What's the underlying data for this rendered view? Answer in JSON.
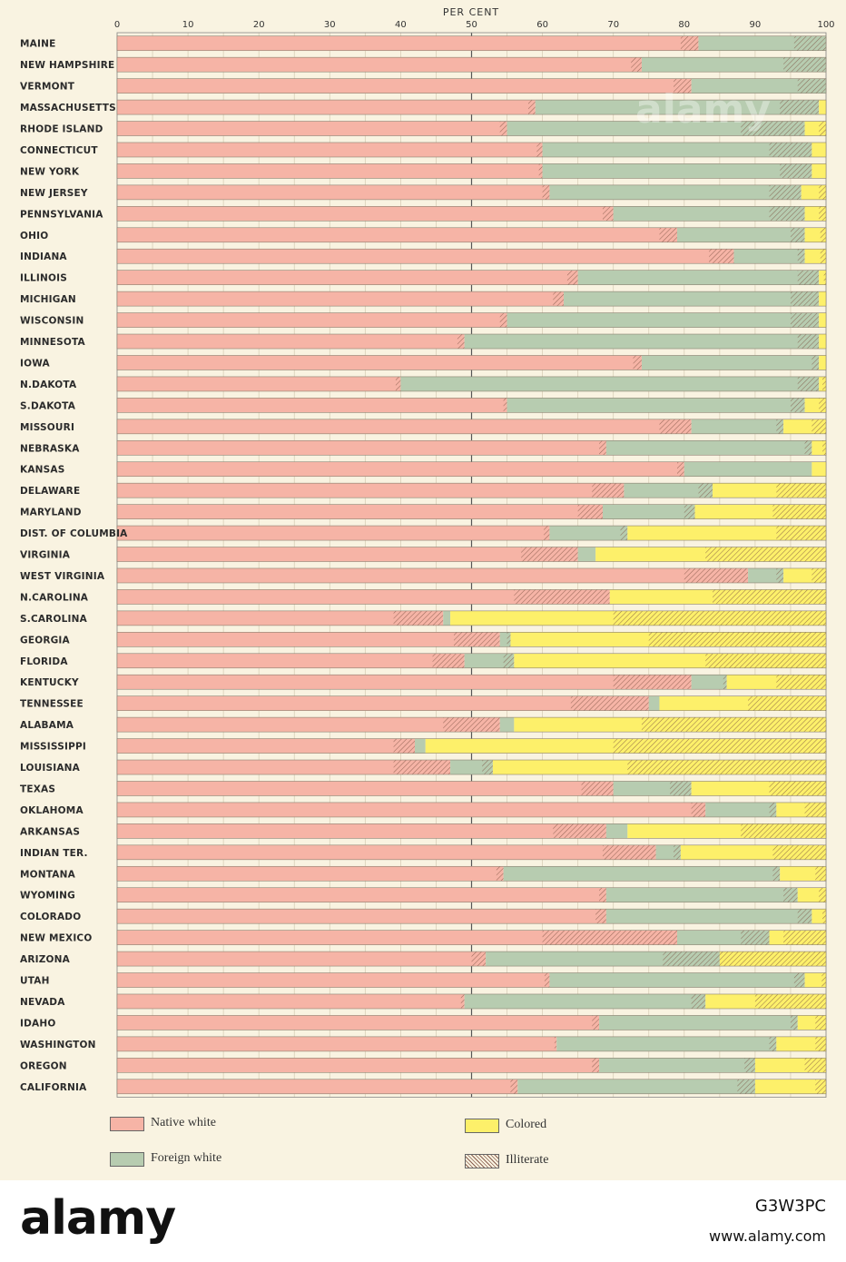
{
  "chart_data": {
    "type": "bar",
    "orientation": "horizontal",
    "stacked": true,
    "title": "",
    "xlabel": "PER CENT",
    "xlim": [
      0,
      100
    ],
    "x_ticks": [
      "0",
      "10",
      "20",
      "30",
      "40",
      "50",
      "60",
      "70",
      "80",
      "90",
      "100"
    ],
    "grid": true,
    "legend": [
      {
        "key": "native",
        "label": "Native white",
        "color": "#f6b4a6"
      },
      {
        "key": "foreign",
        "label": "Foreign white",
        "color": "#b7ccb0"
      },
      {
        "key": "colored",
        "label": "Colored",
        "color": "#fdf06a"
      },
      {
        "key": "illiterate",
        "label": "Illiterate",
        "color": "hatched"
      }
    ],
    "categories": [
      "MAINE",
      "NEW HAMPSHIRE",
      "VERMONT",
      "MASSACHUSETTS",
      "RHODE ISLAND",
      "CONNECTICUT",
      "NEW YORK",
      "NEW JERSEY",
      "PENNSYLVANIA",
      "OHIO",
      "INDIANA",
      "ILLINOIS",
      "MICHIGAN",
      "WISCONSIN",
      "MINNESOTA",
      "IOWA",
      "N.DAKOTA",
      "S.DAKOTA",
      "MISSOURI",
      "NEBRASKA",
      "KANSAS",
      "DELAWARE",
      "MARYLAND",
      "DIST. OF COLUMBIA",
      "VIRGINIA",
      "WEST VIRGINIA",
      "N.CAROLINA",
      "S.CAROLINA",
      "GEORGIA",
      "FLORIDA",
      "KENTUCKY",
      "TENNESSEE",
      "ALABAMA",
      "MISSISSIPPI",
      "LOUISIANA",
      "TEXAS",
      "OKLAHOMA",
      "ARKANSAS",
      "INDIAN TER.",
      "MONTANA",
      "WYOMING",
      "COLORADO",
      "NEW MEXICO",
      "ARIZONA",
      "UTAH",
      "NEVADA",
      "IDAHO",
      "WASHINGTON",
      "OREGON",
      "CALIFORNIA"
    ],
    "rows": [
      {
        "n": 82,
        "ni": 2.5,
        "f": 18,
        "fi": 4.5,
        "c": 0,
        "ci": 0
      },
      {
        "n": 74,
        "ni": 1.5,
        "f": 26,
        "fi": 6,
        "c": 0,
        "ci": 0
      },
      {
        "n": 81,
        "ni": 2.5,
        "f": 19,
        "fi": 4,
        "c": 0,
        "ci": 0
      },
      {
        "n": 59,
        "ni": 1,
        "f": 40,
        "fi": 5.5,
        "c": 1,
        "ci": 0
      },
      {
        "n": 55,
        "ni": 1,
        "f": 42,
        "fi": 9,
        "c": 3,
        "ci": 1
      },
      {
        "n": 60,
        "ni": 0.8,
        "f": 38,
        "fi": 6,
        "c": 2,
        "ci": 0
      },
      {
        "n": 60,
        "ni": 0.5,
        "f": 38,
        "fi": 4.5,
        "c": 2,
        "ci": 0
      },
      {
        "n": 61,
        "ni": 1,
        "f": 35.5,
        "fi": 4.5,
        "c": 3.5,
        "ci": 1
      },
      {
        "n": 70,
        "ni": 1.5,
        "f": 27,
        "fi": 5,
        "c": 3,
        "ci": 1
      },
      {
        "n": 79,
        "ni": 2.5,
        "f": 18,
        "fi": 2,
        "c": 3,
        "ci": 0.8
      },
      {
        "n": 87,
        "ni": 3.5,
        "f": 10,
        "fi": 1,
        "c": 3,
        "ci": 0.8
      },
      {
        "n": 65,
        "ni": 1.5,
        "f": 34,
        "fi": 3,
        "c": 1,
        "ci": 0.3
      },
      {
        "n": 63,
        "ni": 1.5,
        "f": 36,
        "fi": 4,
        "c": 1,
        "ci": 0
      },
      {
        "n": 55,
        "ni": 1,
        "f": 44,
        "fi": 4,
        "c": 1,
        "ci": 0
      },
      {
        "n": 49,
        "ni": 1,
        "f": 50,
        "fi": 3,
        "c": 1,
        "ci": 0
      },
      {
        "n": 74,
        "ni": 1.2,
        "f": 25,
        "fi": 1,
        "c": 1,
        "ci": 0
      },
      {
        "n": 40,
        "ni": 0.7,
        "f": 59,
        "fi": 3,
        "c": 1,
        "ci": 0.5
      },
      {
        "n": 55,
        "ni": 0.5,
        "f": 42,
        "fi": 2,
        "c": 3,
        "ci": 1
      },
      {
        "n": 81,
        "ni": 4.5,
        "f": 13,
        "fi": 1,
        "c": 6,
        "ci": 2
      },
      {
        "n": 69,
        "ni": 1,
        "f": 29,
        "fi": 1,
        "c": 2,
        "ci": 0.5
      },
      {
        "n": 80,
        "ni": 1,
        "f": 18,
        "fi": 0,
        "c": 2,
        "ci": 0
      },
      {
        "n": 71.5,
        "ni": 4.5,
        "f": 12.5,
        "fi": 2,
        "c": 16,
        "ci": 7
      },
      {
        "n": 68.5,
        "ni": 3.5,
        "f": 13,
        "fi": 1.5,
        "c": 18.5,
        "ci": 7.5
      },
      {
        "n": 61,
        "ni": 0.8,
        "f": 11,
        "fi": 1,
        "c": 28,
        "ci": 7
      },
      {
        "n": 65,
        "ni": 8,
        "f": 2.5,
        "fi": 0,
        "c": 32.5,
        "ci": 17
      },
      {
        "n": 89,
        "ni": 9,
        "f": 5,
        "fi": 1,
        "c": 6,
        "ci": 2
      },
      {
        "n": 69.5,
        "ni": 13.5,
        "f": 0,
        "fi": 0,
        "c": 30.5,
        "ci": 16
      },
      {
        "n": 46,
        "ni": 7,
        "f": 1,
        "fi": 0,
        "c": 53,
        "ci": 30
      },
      {
        "n": 54,
        "ni": 6.5,
        "f": 1.5,
        "fi": 0.5,
        "c": 44.5,
        "ci": 25
      },
      {
        "n": 49,
        "ni": 4.5,
        "f": 7,
        "fi": 1.5,
        "c": 44,
        "ci": 17
      },
      {
        "n": 81,
        "ni": 11,
        "f": 5,
        "fi": 0.5,
        "c": 14,
        "ci": 7
      },
      {
        "n": 75,
        "ni": 11,
        "f": 1.5,
        "fi": 0,
        "c": 23.5,
        "ci": 11
      },
      {
        "n": 54,
        "ni": 8,
        "f": 2,
        "fi": 0,
        "c": 44,
        "ci": 26
      },
      {
        "n": 42,
        "ni": 3,
        "f": 1.5,
        "fi": 0,
        "c": 56.5,
        "ci": 30
      },
      {
        "n": 47,
        "ni": 8,
        "f": 6,
        "fi": 1.5,
        "c": 47,
        "ci": 28
      },
      {
        "n": 70,
        "ni": 4.5,
        "f": 11,
        "fi": 3,
        "c": 19,
        "ci": 8
      },
      {
        "n": 83,
        "ni": 2,
        "f": 10,
        "fi": 1,
        "c": 7,
        "ci": 3
      },
      {
        "n": 69,
        "ni": 7.5,
        "f": 3,
        "fi": 0,
        "c": 28,
        "ci": 12
      },
      {
        "n": 76,
        "ni": 7.5,
        "f": 3.5,
        "fi": 1,
        "c": 20.5,
        "ci": 7.5
      },
      {
        "n": 54.5,
        "ni": 1,
        "f": 39,
        "fi": 1,
        "c": 6.5,
        "ci": 1.5
      },
      {
        "n": 69,
        "ni": 1,
        "f": 27,
        "fi": 2,
        "c": 4,
        "ci": 1
      },
      {
        "n": 69,
        "ni": 1.5,
        "f": 29,
        "fi": 2,
        "c": 2,
        "ci": 0.5
      },
      {
        "n": 79,
        "ni": 19,
        "f": 13,
        "fi": 4,
        "c": 8,
        "ci": 6
      },
      {
        "n": 52,
        "ni": 2,
        "f": 33,
        "fi": 8,
        "c": 15,
        "ci": 15.5
      },
      {
        "n": 61,
        "ni": 0.7,
        "f": 36,
        "fi": 1.5,
        "c": 3,
        "ci": 0.6
      },
      {
        "n": 49,
        "ni": 0.5,
        "f": 34,
        "fi": 2,
        "c": 17,
        "ci": 10
      },
      {
        "n": 68,
        "ni": 1,
        "f": 28,
        "fi": 1,
        "c": 4,
        "ci": 1.5
      },
      {
        "n": 62,
        "ni": 0.3,
        "f": 31,
        "fi": 1,
        "c": 7,
        "ci": 1.5
      },
      {
        "n": 68,
        "ni": 1,
        "f": 22,
        "fi": 1.5,
        "c": 10,
        "ci": 3
      },
      {
        "n": 56.5,
        "ni": 1,
        "f": 33.5,
        "fi": 2.5,
        "c": 10,
        "ci": 1.5
      }
    ]
  },
  "legend_labels": {
    "native": "Native white",
    "foreign": "Foreign white",
    "colored": "Colored",
    "illiterate": "Illiterate"
  },
  "footer": {
    "brand": "alamy",
    "image_id": "G3W3PC",
    "url": "www.alamy.com"
  }
}
